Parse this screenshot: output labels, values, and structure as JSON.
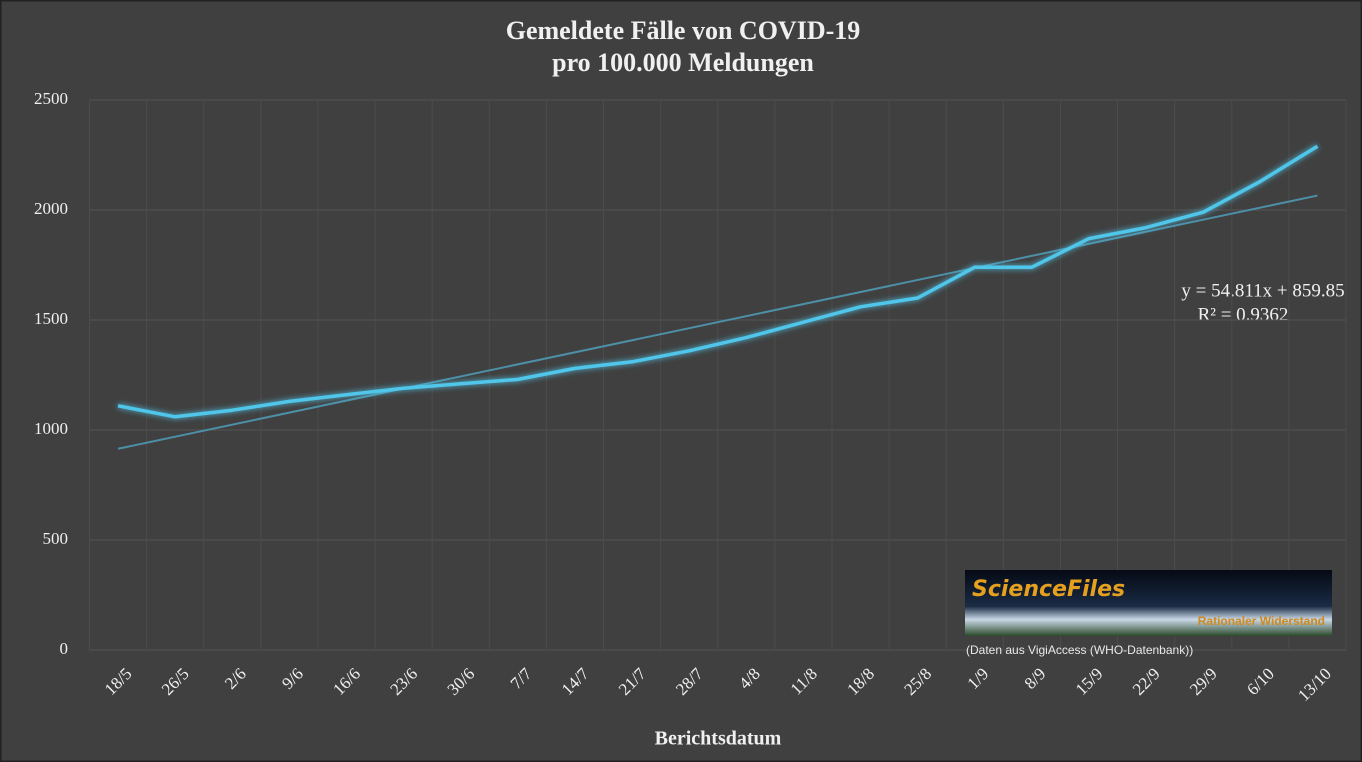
{
  "chart_data": {
    "type": "line",
    "title": [
      "Gemeldete Fälle von COVID-19",
      "pro 100.000 Meldungen"
    ],
    "x_label": "Berichtsdatum",
    "categories": [
      "18/5",
      "26/5",
      "2/6",
      "9/6",
      "16/6",
      "23/6",
      "30/6",
      "7/7",
      "14/7",
      "21/7",
      "28/7",
      "4/8",
      "11/8",
      "18/8",
      "25/8",
      "1/9",
      "8/9",
      "15/9",
      "22/9",
      "29/9",
      "6/10",
      "13/10"
    ],
    "series": [
      {
        "color": "#4fc6ea",
        "values": [
          1110,
          1060,
          1090,
          1130,
          1160,
          1190,
          1210,
          1230,
          1280,
          1310,
          1360,
          1420,
          1490,
          1560,
          1600,
          1740,
          1740,
          1870,
          1920,
          1990,
          2130,
          2290
        ]
      }
    ],
    "trendline": {
      "color": "#4d8fa6",
      "slope": 54.811,
      "intercept": 859.85,
      "equation": "y = 54.811x + 859.85",
      "r_squared": "R² = 0.9362"
    },
    "ylim": [
      0,
      2500
    ],
    "yticks": [
      0,
      500,
      1000,
      1500,
      2000,
      2500
    ],
    "grid": true,
    "logo": {
      "name": "ScienceFiles",
      "motto": "Rationaler Widerstand",
      "caption": "(Daten aus VigiAccess (WHO-Datenbank))"
    }
  }
}
